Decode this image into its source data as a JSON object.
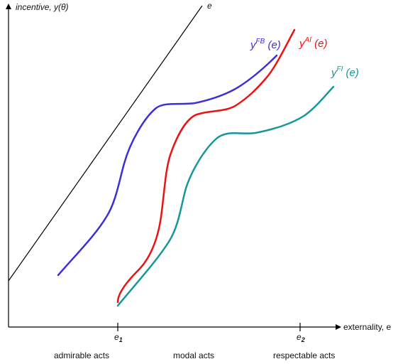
{
  "axes": {
    "y_label": "incentive, y(θ)",
    "x_label": "externality, e"
  },
  "reference_line": {
    "label": "e"
  },
  "ticks": [
    {
      "base": "e",
      "sub": "1"
    },
    {
      "base": "e",
      "sub": "2"
    }
  ],
  "regions": [
    "admirable acts",
    "modal acts",
    "respectable acts"
  ],
  "curves": [
    {
      "base": "y",
      "sup": "FB",
      "arg": " (e)",
      "color": "#3d2fd6"
    },
    {
      "base": "y",
      "sup": "AI",
      "arg": " (e)",
      "color": "#ee1111"
    },
    {
      "base": "y",
      "sup": "FI",
      "arg": " (e)",
      "color": "#17969a"
    }
  ],
  "colors": {
    "axis": "#000000",
    "text": "#111111"
  }
}
